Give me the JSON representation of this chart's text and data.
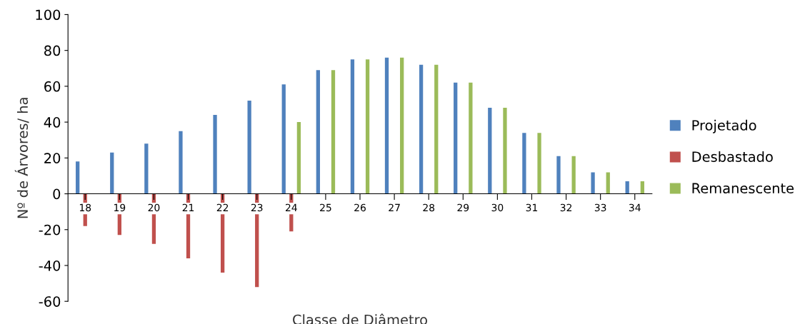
{
  "chart_data": {
    "type": "bar",
    "xlabel": "Classe de Diâmetro",
    "ylabel": "Nº de Árvores/ ha",
    "categories": [
      "18",
      "19",
      "20",
      "21",
      "22",
      "23",
      "24",
      "25",
      "26",
      "27",
      "28",
      "29",
      "30",
      "31",
      "32",
      "33",
      "34"
    ],
    "series": [
      {
        "name": "Projetado",
        "color": "#4f81bd",
        "values": [
          18,
          23,
          28,
          35,
          44,
          52,
          61,
          69,
          75,
          76,
          72,
          62,
          48,
          34,
          21,
          12,
          7
        ]
      },
      {
        "name": "Desbastado",
        "color": "#c0504d",
        "values": [
          -18,
          -23,
          -28,
          -36,
          -44,
          -52,
          -21,
          null,
          null,
          null,
          null,
          null,
          null,
          null,
          null,
          null,
          null
        ]
      },
      {
        "name": "Remanescente",
        "color": "#9bbb59",
        "values": [
          null,
          null,
          null,
          null,
          null,
          null,
          40,
          69,
          75,
          76,
          72,
          62,
          48,
          34,
          21,
          12,
          7
        ]
      }
    ],
    "ylim": [
      -60,
      100
    ],
    "yticks": [
      -60,
      -40,
      -20,
      0,
      20,
      40,
      60,
      80,
      100
    ],
    "grid": false,
    "legend": "right"
  }
}
